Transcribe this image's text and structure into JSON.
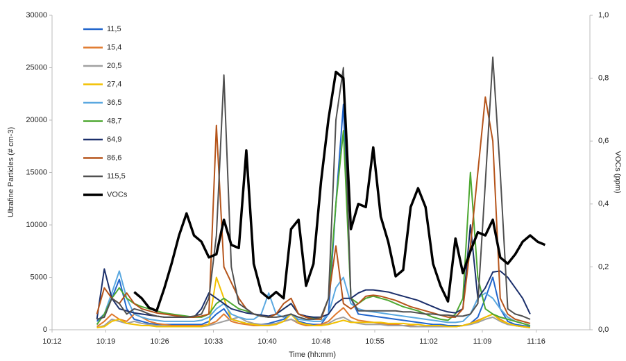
{
  "chart_data": {
    "type": "line",
    "x_label": "Time (hh:mm)",
    "y_label": "Ultrafine Particles (# cm-3)",
    "y2_label": "VOCs (ppm)",
    "xlim": [
      612,
      684
    ],
    "xticks": [
      {
        "value": 612,
        "label": "10:12"
      },
      {
        "value": 619.2,
        "label": "10:19"
      },
      {
        "value": 626.4,
        "label": "10:26"
      },
      {
        "value": 633.6,
        "label": "10:33"
      },
      {
        "value": 640.8,
        "label": "10:40"
      },
      {
        "value": 648,
        "label": "10:48"
      },
      {
        "value": 655.2,
        "label": "10:55"
      },
      {
        "value": 662.4,
        "label": "11:02"
      },
      {
        "value": 669.6,
        "label": "11:09"
      },
      {
        "value": 676.8,
        "label": "11:16"
      }
    ],
    "ylim": [
      0,
      30000
    ],
    "yticks": [
      0,
      5000,
      10000,
      15000,
      20000,
      25000,
      30000
    ],
    "y2lim": [
      0,
      1
    ],
    "y2ticks": [
      {
        "value": 0,
        "label": "0,0"
      },
      {
        "value": 0.2,
        "label": "0,2"
      },
      {
        "value": 0.4,
        "label": "0,4"
      },
      {
        "value": 0.6,
        "label": "0,6"
      },
      {
        "value": 0.8,
        "label": "0,8"
      },
      {
        "value": 1,
        "label": "1,0"
      }
    ],
    "grid": false,
    "legend": "upper left",
    "x": [
      618,
      619,
      620,
      621,
      622,
      623,
      624,
      625,
      626,
      627,
      628,
      629,
      630,
      631,
      632,
      633,
      634,
      635,
      636,
      637,
      638,
      639,
      640,
      641,
      642,
      643,
      644,
      645,
      646,
      647,
      648,
      649,
      650,
      651,
      652,
      653,
      654,
      655,
      656,
      657,
      658,
      659,
      660,
      661,
      662,
      663,
      664,
      665,
      666,
      667,
      668,
      669,
      670,
      671,
      672,
      673,
      674,
      675,
      676,
      677,
      678
    ],
    "series": [
      {
        "name": "11,5",
        "color": "#2266cc",
        "values": [
          800,
          1500,
          3000,
          4800,
          2000,
          1000,
          800,
          600,
          500,
          500,
          500,
          500,
          500,
          500,
          500,
          800,
          1500,
          2000,
          1000,
          800,
          600,
          500,
          500,
          600,
          800,
          1000,
          1500,
          800,
          600,
          500,
          500,
          1500,
          12000,
          21500,
          3000,
          1500,
          1400,
          1300,
          1200,
          1100,
          1000,
          900,
          800,
          700,
          600,
          500,
          500,
          400,
          400,
          400,
          600,
          1200,
          3000,
          5000,
          2000,
          800,
          500,
          400,
          300,
          null,
          null
        ]
      },
      {
        "name": "15,4",
        "color": "#e07b30",
        "values": [
          300,
          800,
          1500,
          1000,
          800,
          1500,
          1200,
          800,
          600,
          500,
          400,
          400,
          400,
          400,
          400,
          500,
          800,
          1500,
          800,
          600,
          500,
          400,
          400,
          400,
          600,
          800,
          1000,
          600,
          400,
          400,
          500,
          800,
          1500,
          2100,
          1200,
          900,
          800,
          700,
          600,
          500,
          500,
          400,
          400,
          300,
          300,
          300,
          300,
          300,
          300,
          400,
          600,
          900,
          1200,
          1500,
          1000,
          600,
          400,
          300,
          200,
          null,
          null
        ]
      },
      {
        "name": "20,5",
        "color": "#a0a0a0",
        "values": [
          200,
          400,
          1000,
          800,
          600,
          800,
          600,
          500,
          400,
          400,
          300,
          300,
          300,
          300,
          300,
          400,
          600,
          800,
          1000,
          1200,
          800,
          600,
          500,
          500,
          600,
          800,
          1000,
          700,
          500,
          400,
          400,
          600,
          1000,
          1200,
          800,
          600,
          500,
          500,
          500,
          400,
          400,
          400,
          300,
          300,
          300,
          300,
          300,
          300,
          300,
          400,
          500,
          700,
          1000,
          1200,
          800,
          500,
          400,
          300,
          200,
          null,
          null
        ]
      },
      {
        "name": "27,4",
        "color": "#f2c100",
        "values": [
          200,
          300,
          800,
          1000,
          600,
          500,
          400,
          400,
          300,
          300,
          300,
          300,
          300,
          300,
          300,
          500,
          5000,
          3000,
          1000,
          800,
          600,
          500,
          400,
          400,
          500,
          800,
          1500,
          700,
          500,
          400,
          400,
          500,
          700,
          900,
          700,
          700,
          700,
          700,
          700,
          600,
          600,
          600,
          500,
          500,
          400,
          400,
          400,
          300,
          300,
          400,
          600,
          800,
          1200,
          1500,
          900,
          600,
          400,
          300,
          200,
          null,
          null
        ]
      },
      {
        "name": "36,5",
        "color": "#5aa8e0",
        "values": [
          500,
          1500,
          3500,
          5600,
          3000,
          1500,
          1200,
          1000,
          900,
          800,
          800,
          800,
          800,
          800,
          900,
          1200,
          2000,
          2500,
          1500,
          1200,
          1000,
          1000,
          1500,
          3500,
          1500,
          1200,
          1500,
          1000,
          900,
          800,
          800,
          1500,
          4000,
          5000,
          2500,
          2000,
          1800,
          1700,
          1600,
          1500,
          1400,
          1300,
          1200,
          1100,
          1000,
          900,
          800,
          700,
          700,
          800,
          1500,
          3000,
          3500,
          3000,
          2000,
          1200,
          800,
          600,
          400,
          null,
          null
        ]
      },
      {
        "name": "48,7",
        "color": "#4ea832",
        "values": [
          500,
          1500,
          3000,
          4000,
          3000,
          2500,
          2200,
          2000,
          1800,
          1600,
          1500,
          1400,
          1300,
          1200,
          1200,
          1500,
          2500,
          3000,
          2500,
          2000,
          1800,
          1500,
          1300,
          1200,
          1500,
          2000,
          2500,
          1500,
          1200,
          1100,
          1000,
          3000,
          12000,
          19000,
          3000,
          2500,
          3000,
          3200,
          3000,
          2800,
          2500,
          2200,
          2000,
          1800,
          1500,
          1200,
          1000,
          900,
          1500,
          3000,
          15000,
          5000,
          2000,
          1500,
          1200,
          1000,
          800,
          600,
          400,
          null,
          null
        ]
      },
      {
        "name": "64,9",
        "color": "#1b2f6b",
        "values": [
          1000,
          5800,
          3000,
          2000,
          1800,
          1600,
          1500,
          1400,
          1300,
          1200,
          1200,
          1200,
          1200,
          1200,
          2000,
          3500,
          3000,
          2500,
          2000,
          1800,
          1600,
          1500,
          1400,
          1300,
          1500,
          2000,
          2500,
          1500,
          1300,
          1200,
          1200,
          1500,
          2500,
          3000,
          3000,
          3500,
          3800,
          3800,
          3700,
          3600,
          3400,
          3200,
          3000,
          2800,
          2500,
          2200,
          1900,
          1700,
          1600,
          2000,
          10000,
          3000,
          4000,
          5500,
          5600,
          5000,
          4000,
          3000,
          1500,
          null,
          null
        ]
      },
      {
        "name": "86,6",
        "color": "#b5541a",
        "values": [
          1500,
          4000,
          3000,
          2500,
          3500,
          2500,
          2000,
          1800,
          1600,
          1500,
          1400,
          1300,
          1200,
          1200,
          1300,
          1500,
          19500,
          6000,
          4500,
          3000,
          2000,
          1500,
          1300,
          1200,
          1500,
          2500,
          3000,
          1500,
          1200,
          1000,
          1000,
          3000,
          8000,
          2500,
          2000,
          2500,
          3200,
          3300,
          3200,
          3000,
          2800,
          2500,
          2200,
          2000,
          1800,
          1600,
          1400,
          1200,
          1200,
          2000,
          8000,
          15000,
          22200,
          18000,
          3000,
          1500,
          1000,
          800,
          600,
          null,
          null
        ]
      },
      {
        "name": "115,5",
        "color": "#505050",
        "values": [
          1000,
          1200,
          3000,
          2500,
          1500,
          2000,
          1800,
          1500,
          1300,
          1200,
          1200,
          1200,
          1200,
          1300,
          1500,
          3000,
          9000,
          24300,
          6000,
          2500,
          2000,
          1500,
          1300,
          1200,
          1200,
          1300,
          1500,
          1200,
          1000,
          1000,
          1200,
          3000,
          20000,
          25000,
          3000,
          1800,
          1800,
          1800,
          1800,
          1800,
          1800,
          1700,
          1700,
          1600,
          1500,
          1500,
          1400,
          1400,
          1300,
          1300,
          1500,
          2500,
          14000,
          26000,
          15000,
          2000,
          1500,
          1300,
          1000,
          null,
          null
        ]
      },
      {
        "name": "VOCs",
        "color": "#000000",
        "axis": "y2",
        "values": [
          null,
          null,
          null,
          null,
          null,
          0.12,
          0.1,
          0.07,
          0.06,
          0.13,
          0.21,
          0.3,
          0.37,
          0.3,
          0.28,
          0.23,
          0.24,
          0.35,
          0.27,
          0.26,
          0.57,
          0.21,
          0.12,
          0.1,
          0.12,
          0.1,
          0.32,
          0.35,
          0.14,
          0.21,
          0.47,
          0.67,
          0.82,
          0.8,
          0.32,
          0.4,
          0.39,
          0.58,
          0.36,
          0.28,
          0.17,
          0.19,
          0.39,
          0.45,
          0.39,
          0.21,
          0.14,
          0.09,
          0.29,
          0.18,
          0.25,
          0.31,
          0.3,
          0.35,
          0.23,
          0.21,
          0.24,
          0.28,
          0.3,
          0.28,
          0.27
        ]
      }
    ]
  }
}
